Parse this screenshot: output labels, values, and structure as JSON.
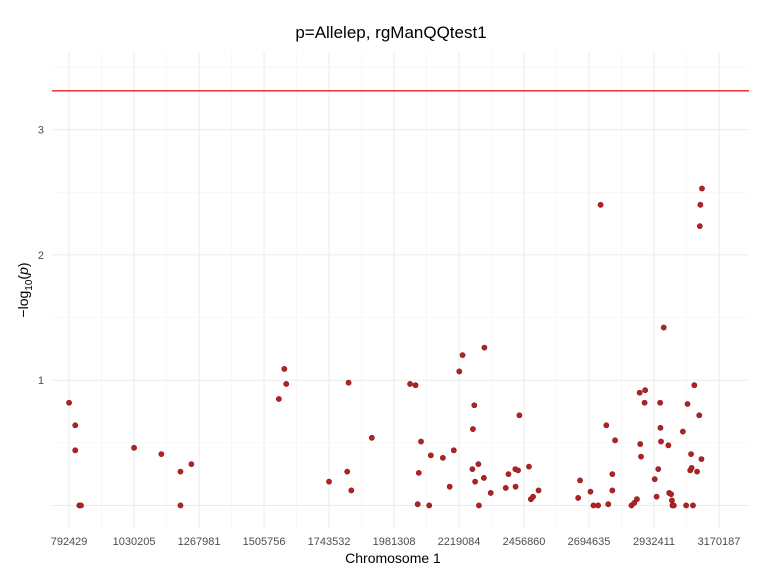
{
  "chart_data": {
    "type": "scatter",
    "title": "p=Allelep, rgManQQtest1",
    "xlabel": "Chromosome 1",
    "ylabel_base": "−log",
    "ylabel_sub": "10",
    "ylabel_open": "(",
    "ylabel_var": "p",
    "ylabel_close": ")",
    "x_tick_labels": [
      "792429",
      "1030205",
      "1267981",
      "1505756",
      "1743532",
      "1981308",
      "2219084",
      "2456860",
      "2694635",
      "2932411",
      "3170187"
    ],
    "x_tick_values": [
      792429,
      1030205,
      1267981,
      1505756,
      1743532,
      1981308,
      2219084,
      2456860,
      2694635,
      2932411,
      3170187
    ],
    "xlim": [
      730000,
      3280000
    ],
    "y_tick_labels": [
      "1",
      "2",
      "3"
    ],
    "y_tick_values": [
      1,
      2,
      3
    ],
    "ylim": [
      -0.18,
      3.62
    ],
    "threshold": 3.31,
    "threshold_color": "#ee1c1c",
    "point_color": "#b22222",
    "grid": true,
    "points": [
      [
        792429,
        0.82
      ],
      [
        815000,
        0.64
      ],
      [
        815000,
        0.44
      ],
      [
        830000,
        0.0
      ],
      [
        836000,
        0.0
      ],
      [
        1030205,
        0.46
      ],
      [
        1130000,
        0.41
      ],
      [
        1200000,
        0.27
      ],
      [
        1200000,
        0.0
      ],
      [
        1240000,
        0.33
      ],
      [
        1560000,
        0.85
      ],
      [
        1580000,
        1.09
      ],
      [
        1587000,
        0.97
      ],
      [
        1743532,
        0.19
      ],
      [
        1810000,
        0.27
      ],
      [
        1815000,
        0.98
      ],
      [
        1825000,
        0.12
      ],
      [
        1900000,
        0.54
      ],
      [
        2040000,
        0.97
      ],
      [
        2060000,
        0.96
      ],
      [
        2068000,
        0.01
      ],
      [
        2072000,
        0.26
      ],
      [
        2080000,
        0.51
      ],
      [
        2110000,
        0.0
      ],
      [
        2116000,
        0.4
      ],
      [
        2160000,
        0.38
      ],
      [
        2185000,
        0.15
      ],
      [
        2200000,
        0.44
      ],
      [
        2220000,
        1.07
      ],
      [
        2232000,
        1.2
      ],
      [
        2268000,
        0.29
      ],
      [
        2270000,
        0.61
      ],
      [
        2275000,
        0.8
      ],
      [
        2278000,
        0.19
      ],
      [
        2290000,
        0.33
      ],
      [
        2292000,
        0.0
      ],
      [
        2310000,
        0.22
      ],
      [
        2312000,
        1.26
      ],
      [
        2335000,
        0.1
      ],
      [
        2390000,
        0.14
      ],
      [
        2400000,
        0.25
      ],
      [
        2425000,
        0.29
      ],
      [
        2426000,
        0.15
      ],
      [
        2435000,
        0.28
      ],
      [
        2440000,
        0.72
      ],
      [
        2475000,
        0.31
      ],
      [
        2482000,
        0.05
      ],
      [
        2490000,
        0.07
      ],
      [
        2510000,
        0.12
      ],
      [
        2655000,
        0.06
      ],
      [
        2662000,
        0.2
      ],
      [
        2700000,
        0.11
      ],
      [
        2711000,
        0.0
      ],
      [
        2728000,
        0.0
      ],
      [
        2737000,
        2.4
      ],
      [
        2758000,
        0.64
      ],
      [
        2765000,
        0.01
      ],
      [
        2780000,
        0.25
      ],
      [
        2780000,
        0.12
      ],
      [
        2790000,
        0.52
      ],
      [
        2850000,
        0.0
      ],
      [
        2860000,
        0.02
      ],
      [
        2870000,
        0.05
      ],
      [
        2880000,
        0.9
      ],
      [
        2882000,
        0.49
      ],
      [
        2885000,
        0.39
      ],
      [
        2898000,
        0.82
      ],
      [
        2900000,
        0.92
      ],
      [
        2935000,
        0.21
      ],
      [
        2942000,
        0.07
      ],
      [
        2948000,
        0.29
      ],
      [
        2955000,
        0.82
      ],
      [
        2956000,
        0.62
      ],
      [
        2958000,
        0.51
      ],
      [
        2968000,
        1.42
      ],
      [
        2985000,
        0.48
      ],
      [
        2988000,
        0.1
      ],
      [
        2995000,
        0.09
      ],
      [
        2998000,
        0.04
      ],
      [
        3000000,
        0.0
      ],
      [
        3005000,
        0.0
      ],
      [
        3038000,
        0.59
      ],
      [
        3050000,
        0.0
      ],
      [
        3055000,
        0.81
      ],
      [
        3065000,
        0.28
      ],
      [
        3068000,
        0.41
      ],
      [
        3070000,
        0.3
      ],
      [
        3075000,
        0.0
      ],
      [
        3080000,
        0.96
      ],
      [
        3090000,
        0.27
      ],
      [
        3098000,
        0.72
      ],
      [
        3100000,
        2.23
      ],
      [
        3102000,
        2.4
      ],
      [
        3106000,
        0.37
      ],
      [
        3108000,
        2.53
      ]
    ]
  }
}
